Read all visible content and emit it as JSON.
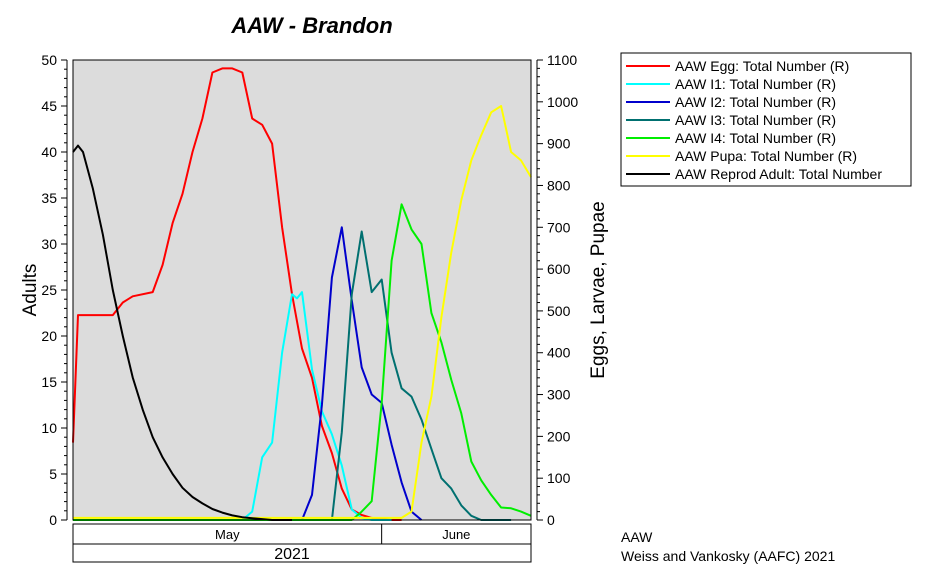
{
  "chart_data": {
    "type": "line",
    "title": "AAW - Brandon",
    "ylabel": "Adults",
    "y2label": "Eggs, Larvae, Pupae",
    "ylim": [
      0,
      50
    ],
    "y2lim": [
      0,
      1100
    ],
    "yticks": [
      "0",
      "5",
      "10",
      "15",
      "20",
      "25",
      "30",
      "35",
      "40",
      "45",
      "50"
    ],
    "y2ticks": [
      "0",
      "100",
      "200",
      "300",
      "400",
      "500",
      "600",
      "700",
      "800",
      "900",
      "1000",
      "1100"
    ],
    "xlim": [
      1,
      47
    ],
    "months": [
      {
        "label": "May",
        "start": 1,
        "end": 32
      },
      {
        "label": "June",
        "start": 32,
        "end": 47
      }
    ],
    "year": "2021",
    "grid": false,
    "legend_position": "top-right, outside plot",
    "series": [
      {
        "name": "AAW Egg: Total Number (R)",
        "axis": "right",
        "color": "#ff0000",
        "x": [
          1,
          1.5,
          2,
          3,
          5,
          6,
          7,
          9,
          10,
          11,
          12,
          13,
          14,
          15,
          16,
          17,
          18,
          19,
          20,
          21,
          22,
          23,
          24,
          25,
          26,
          27,
          28,
          29,
          30,
          31,
          32,
          33,
          34
        ],
        "y": [
          185,
          490,
          490,
          490,
          490,
          520,
          535,
          545,
          610,
          710,
          780,
          880,
          960,
          1070,
          1080,
          1080,
          1070,
          960,
          945,
          900,
          700,
          540,
          410,
          340,
          225,
          160,
          75,
          25,
          12,
          5,
          2,
          0,
          0
        ]
      },
      {
        "name": "AAW I1: Total Number (R)",
        "axis": "right",
        "color": "#00ffff",
        "x": [
          1,
          18,
          19,
          20,
          21,
          22,
          23,
          23.5,
          24,
          25,
          26,
          27,
          28,
          29,
          30,
          31,
          33
        ],
        "y": [
          0,
          0,
          20,
          150,
          185,
          400,
          540,
          530,
          545,
          360,
          260,
          205,
          130,
          25,
          5,
          0,
          0
        ]
      },
      {
        "name": "AAW I2: Total Number (R)",
        "axis": "right",
        "color": "#0000cc",
        "x": [
          1,
          23,
          24,
          25,
          26,
          27,
          28,
          29,
          30,
          31,
          32,
          33,
          34,
          35,
          36
        ],
        "y": [
          0,
          0,
          0,
          60,
          275,
          580,
          700,
          525,
          365,
          300,
          280,
          180,
          90,
          20,
          0
        ]
      },
      {
        "name": "AAW I3: Total Number (R)",
        "axis": "right",
        "color": "#007070",
        "x": [
          1,
          26,
          27,
          28,
          29,
          30,
          31,
          32,
          33,
          34,
          35,
          36,
          37,
          38,
          39,
          40,
          41,
          42,
          43,
          44,
          45
        ],
        "y": [
          0,
          0,
          0,
          210,
          540,
          690,
          545,
          575,
          400,
          315,
          295,
          240,
          170,
          100,
          75,
          35,
          10,
          0,
          0,
          0,
          0
        ]
      },
      {
        "name": "AAW I4: Total Number (R)",
        "axis": "right",
        "color": "#00ee00",
        "x": [
          1,
          29,
          30,
          31,
          32,
          33,
          34,
          35,
          36,
          37,
          38,
          39,
          40,
          41,
          42,
          43,
          44,
          45,
          46,
          47
        ],
        "y": [
          0,
          0,
          20,
          45,
          280,
          620,
          755,
          695,
          660,
          495,
          425,
          335,
          255,
          140,
          95,
          60,
          30,
          28,
          20,
          10
        ]
      },
      {
        "name": "AAW Pupa: Total Number (R)",
        "axis": "right",
        "color": "#ffff00",
        "x": [
          1,
          33,
          34,
          35,
          36,
          37,
          38,
          39,
          40,
          41,
          42,
          43,
          44,
          45,
          46,
          47
        ],
        "y": [
          5,
          5,
          5,
          20,
          185,
          295,
          485,
          640,
          765,
          860,
          920,
          975,
          990,
          880,
          860,
          820
        ]
      },
      {
        "name": "AAW Reprod Adult: Total Number",
        "axis": "left",
        "color": "#000000",
        "x": [
          1,
          1.5,
          2,
          3,
          4,
          5,
          6,
          7,
          8,
          9,
          10,
          11,
          12,
          13,
          14,
          15,
          16,
          17,
          18,
          19,
          20,
          21,
          22,
          23
        ],
        "y": [
          40,
          40.7,
          40,
          36,
          31,
          25,
          20,
          15.5,
          12,
          9,
          6.8,
          5,
          3.5,
          2.5,
          1.8,
          1.2,
          0.8,
          0.5,
          0.3,
          0.2,
          0.1,
          0,
          0,
          0
        ]
      }
    ]
  },
  "footer": {
    "line1": "AAW",
    "line2": "Weiss and Vankosky (AAFC) 2021"
  }
}
